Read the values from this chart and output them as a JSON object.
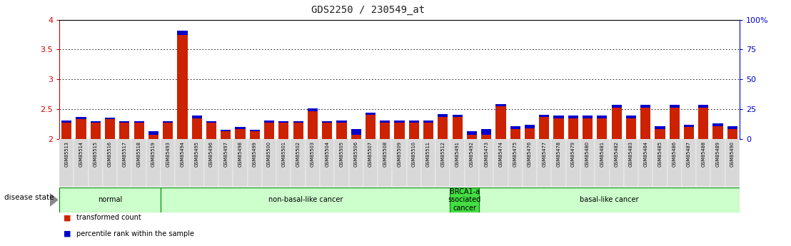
{
  "title": "GDS2250 / 230549_at",
  "samples": [
    "GSM85513",
    "GSM85514",
    "GSM85515",
    "GSM85516",
    "GSM85517",
    "GSM85518",
    "GSM85519",
    "GSM85493",
    "GSM85494",
    "GSM85495",
    "GSM85496",
    "GSM85497",
    "GSM85498",
    "GSM85499",
    "GSM85500",
    "GSM85501",
    "GSM85502",
    "GSM85503",
    "GSM85504",
    "GSM85505",
    "GSM85506",
    "GSM85507",
    "GSM85508",
    "GSM85509",
    "GSM85510",
    "GSM85511",
    "GSM85512",
    "GSM85491",
    "GSM85492",
    "GSM85473",
    "GSM85474",
    "GSM85475",
    "GSM85476",
    "GSM85477",
    "GSM85478",
    "GSM85479",
    "GSM85480",
    "GSM85481",
    "GSM85482",
    "GSM85483",
    "GSM85484",
    "GSM85485",
    "GSM85486",
    "GSM85487",
    "GSM85488",
    "GSM85489",
    "GSM85490"
  ],
  "red_values": [
    2.27,
    2.33,
    2.27,
    2.33,
    2.27,
    2.27,
    2.07,
    2.27,
    3.75,
    2.35,
    2.27,
    2.13,
    2.17,
    2.13,
    2.27,
    2.27,
    2.27,
    2.47,
    2.27,
    2.27,
    2.07,
    2.4,
    2.27,
    2.27,
    2.27,
    2.27,
    2.37,
    2.37,
    2.07,
    2.07,
    2.55,
    2.17,
    2.18,
    2.37,
    2.35,
    2.35,
    2.35,
    2.35,
    2.52,
    2.35,
    2.52,
    2.17,
    2.52,
    2.2,
    2.52,
    2.22,
    2.17
  ],
  "blue_values": [
    0.04,
    0.04,
    0.03,
    0.03,
    0.03,
    0.03,
    0.06,
    0.03,
    0.07,
    0.04,
    0.03,
    0.03,
    0.03,
    0.03,
    0.04,
    0.03,
    0.03,
    0.04,
    0.03,
    0.04,
    0.1,
    0.04,
    0.04,
    0.04,
    0.04,
    0.04,
    0.05,
    0.04,
    0.06,
    0.1,
    0.04,
    0.04,
    0.06,
    0.04,
    0.04,
    0.04,
    0.04,
    0.04,
    0.05,
    0.04,
    0.05,
    0.04,
    0.05,
    0.04,
    0.05,
    0.04,
    0.04
  ],
  "groups": [
    {
      "label": "normal",
      "start": 0,
      "end": 7,
      "color": "#ccffcc"
    },
    {
      "label": "non-basal-like cancer",
      "start": 7,
      "end": 27,
      "color": "#ccffcc"
    },
    {
      "label": "BRCA1-a\nssociated\ncancer",
      "start": 27,
      "end": 29,
      "color": "#44dd44"
    },
    {
      "label": "basal-like cancer",
      "start": 29,
      "end": 47,
      "color": "#ccffcc"
    }
  ],
  "ylim_left": [
    2.0,
    4.0
  ],
  "ylim_right": [
    0,
    100
  ],
  "yticks_left": [
    2.0,
    2.5,
    3.0,
    3.5,
    4.0
  ],
  "yticks_right": [
    0,
    25,
    50,
    75,
    100
  ],
  "ytick_labels_right": [
    "0",
    "25",
    "50",
    "75",
    "100%"
  ],
  "ytick_labels_left": [
    "2",
    "2.5",
    "3",
    "3.5",
    "4"
  ],
  "bar_color_red": "#cc2200",
  "bar_color_blue": "#0000cc",
  "background_color": "#ffffff",
  "disease_state_label": "disease state",
  "legend_items": [
    {
      "color": "#cc2200",
      "label": "transformed count"
    },
    {
      "color": "#0000cc",
      "label": "percentile rank within the sample"
    }
  ],
  "title_color": "#222222",
  "left_tick_color": "#cc0000",
  "right_tick_color": "#0000cc",
  "bar_width": 0.7,
  "baseline": 2.0
}
